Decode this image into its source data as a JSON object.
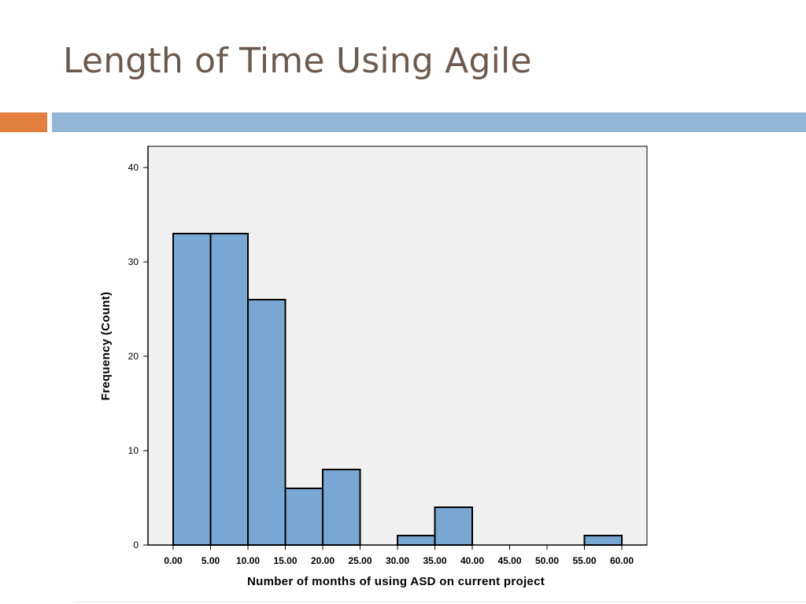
{
  "slide": {
    "title": "Length of Time Using Agile"
  },
  "colors": {
    "accent_orange": "#e27f3f",
    "accent_blue": "#94b6d6",
    "title": "#6b5a4e",
    "plot_background": "#f0f0f0",
    "bar_fill": "#79a7d3"
  },
  "chart_data": {
    "type": "bar",
    "subtype": "histogram",
    "xlabel": "Number of months of using ASD on current project",
    "ylabel": "Frequency (Count)",
    "xlim": [
      -2.5,
      62.5
    ],
    "ylim": [
      0,
      40
    ],
    "y_ticks": [
      0,
      10,
      20,
      30,
      40
    ],
    "x_ticks": [
      "0.00",
      "5.00",
      "10.00",
      "15.00",
      "20.00",
      "25.00",
      "30.00",
      "35.00",
      "40.00",
      "45.00",
      "50.00",
      "55.00",
      "60.00"
    ],
    "bins": [
      {
        "from": 0,
        "to": 5,
        "count": 33
      },
      {
        "from": 5,
        "to": 10,
        "count": 33
      },
      {
        "from": 10,
        "to": 15,
        "count": 26
      },
      {
        "from": 15,
        "to": 20,
        "count": 6
      },
      {
        "from": 20,
        "to": 25,
        "count": 8
      },
      {
        "from": 25,
        "to": 30,
        "count": 0
      },
      {
        "from": 30,
        "to": 35,
        "count": 1
      },
      {
        "from": 35,
        "to": 40,
        "count": 4
      },
      {
        "from": 40,
        "to": 45,
        "count": 0
      },
      {
        "from": 45,
        "to": 50,
        "count": 0
      },
      {
        "from": 50,
        "to": 55,
        "count": 0
      },
      {
        "from": 55,
        "to": 60,
        "count": 1
      }
    ],
    "grid": false
  }
}
